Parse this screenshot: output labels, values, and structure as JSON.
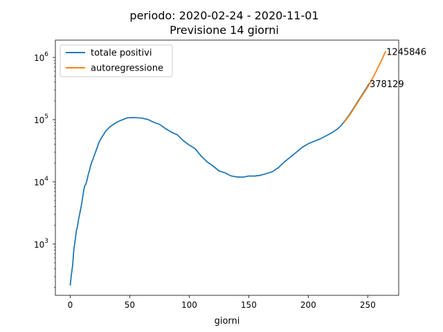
{
  "chart_data": {
    "type": "line",
    "title_lines": [
      "periodo: 2020-02-24 - 2020-11-01",
      "Previsione 14 giorni"
    ],
    "xlabel": "giorni",
    "ylabel": "",
    "xlim": [
      -12.5,
      276
    ],
    "ylim": [
      150,
      1900000
    ],
    "y_scale": "log",
    "grid": false,
    "legend_position": "top-left",
    "x_ticks": [
      0,
      50,
      100,
      150,
      200,
      250
    ],
    "y_ticks": [
      {
        "value": 1000,
        "base": "10",
        "exp": "3"
      },
      {
        "value": 10000,
        "base": "10",
        "exp": "4"
      },
      {
        "value": 100000,
        "base": "10",
        "exp": "5"
      },
      {
        "value": 1000000,
        "base": "10",
        "exp": "6"
      }
    ],
    "series": [
      {
        "name": "totale positivi",
        "color": "#1f77b4",
        "x": [
          0,
          1,
          2,
          3,
          4,
          5,
          6,
          7,
          8,
          9,
          10,
          11,
          12,
          13,
          14,
          15,
          16,
          17,
          18,
          19,
          20,
          22,
          24,
          26,
          28,
          30,
          33,
          36,
          40,
          44,
          48,
          52,
          55,
          60,
          65,
          70,
          75,
          80,
          85,
          90,
          95,
          100,
          105,
          110,
          115,
          120,
          125,
          130,
          135,
          140,
          145,
          150,
          155,
          160,
          165,
          170,
          175,
          180,
          185,
          190,
          195,
          200,
          205,
          210,
          215,
          220,
          225,
          228,
          231,
          234,
          237,
          240,
          243,
          246,
          249,
          251
        ],
        "y": [
          220,
          330,
          450,
          810,
          1100,
          1580,
          1900,
          2500,
          3100,
          3850,
          5000,
          6700,
          8500,
          9100,
          10500,
          12800,
          14900,
          17750,
          20600,
          23000,
          26000,
          33000,
          42500,
          50400,
          57500,
          66400,
          75500,
          83500,
          93000,
          99800,
          107000,
          108000,
          107700,
          106000,
          101000,
          91000,
          84000,
          72000,
          63000,
          57000,
          46000,
          39000,
          34000,
          26000,
          21000,
          18000,
          15000,
          14000,
          12500,
          12000,
          11900,
          12400,
          12400,
          12800,
          13600,
          14600,
          17000,
          21000,
          25000,
          30000,
          36000,
          41000,
          45000,
          49000,
          55000,
          62000,
          72000,
          82000,
          97000,
          116000,
          142000,
          175000,
          215000,
          265000,
          325000,
          378129
        ]
      },
      {
        "name": "autoregressione",
        "color": "#ff7f0e",
        "x": [
          230,
          235,
          240,
          245,
          250,
          255,
          260,
          265
        ],
        "y": [
          90000,
          120000,
          170000,
          240000,
          335000,
          500000,
          780000,
          1245846
        ]
      }
    ],
    "annotations": [
      {
        "text": "1245846",
        "x": 265,
        "y": 1245846
      },
      {
        "text": "378129",
        "x": 251,
        "y": 378129
      }
    ]
  }
}
